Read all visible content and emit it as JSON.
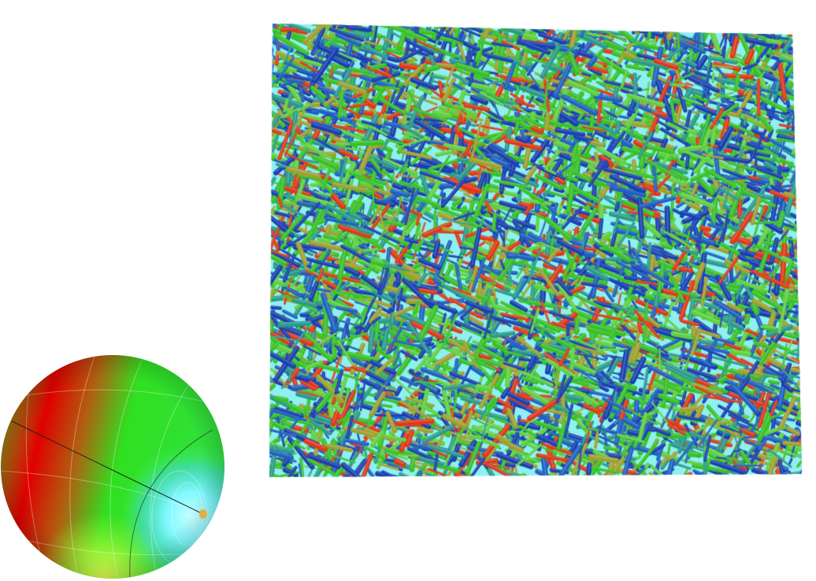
{
  "figure": {
    "sphere": {
      "icon": "orientation-sphere-colormap",
      "colors": {
        "red": "#e00000",
        "green": "#22dd22",
        "cyan": "#88ffff",
        "blue": "#3a8cff",
        "yellow": "#e8ff40",
        "pole": "#e0b040"
      }
    },
    "volume": {
      "icon": "fiber-volume-render",
      "colors": {
        "background": "#8ef0f0",
        "blue": "#1a3fb0",
        "green": "#38c028",
        "red": "#e03818",
        "teal": "#2a9a8a",
        "olive": "#a0a030"
      }
    }
  }
}
